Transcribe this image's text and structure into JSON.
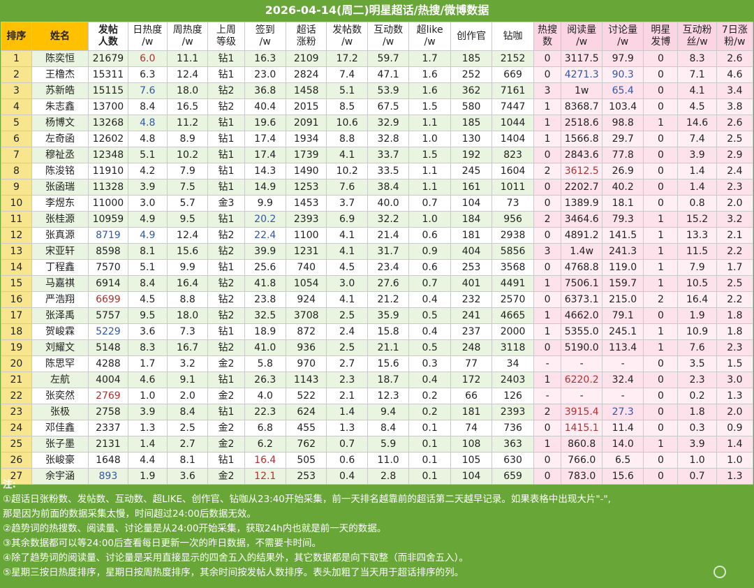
{
  "title": "2026-04-14(周二)明星超话/热搜/微博数据",
  "headers": [
    {
      "l1": "排序",
      "l2": "",
      "style": "gold"
    },
    {
      "l1": "姓名",
      "l2": "",
      "style": "gold"
    },
    {
      "l1": "发帖",
      "l2": "人数",
      "style": "hl"
    },
    {
      "l1": "日热度",
      "l2": "/w",
      "style": ""
    },
    {
      "l1": "周热度",
      "l2": "/w",
      "style": ""
    },
    {
      "l1": "上周",
      "l2": "等级",
      "style": ""
    },
    {
      "l1": "签到",
      "l2": "/w",
      "style": ""
    },
    {
      "l1": "超话",
      "l2": "涨粉",
      "style": ""
    },
    {
      "l1": "发帖数",
      "l2": "/w",
      "style": ""
    },
    {
      "l1": "互动数",
      "l2": "/w",
      "style": ""
    },
    {
      "l1": "超like",
      "l2": "/w",
      "style": ""
    },
    {
      "l1": "创作官",
      "l2": "",
      "style": ""
    },
    {
      "l1": "钻咖",
      "l2": "",
      "style": ""
    },
    {
      "l1": "热搜",
      "l2": "数",
      "style": "pink"
    },
    {
      "l1": "阅读量",
      "l2": "/w",
      "style": "pink"
    },
    {
      "l1": "讨论量",
      "l2": "/w",
      "style": "pink"
    },
    {
      "l1": "明星",
      "l2": "发博",
      "style": "pink"
    },
    {
      "l1": "互动粉",
      "l2": "丝/w",
      "style": "pink"
    },
    {
      "l1": "7日涨",
      "l2": "粉/w",
      "style": "pink"
    }
  ],
  "rows": [
    [
      "1",
      "陈奕恒",
      "21679",
      "6.0",
      "11.1",
      "钻1",
      "16.3",
      "2109",
      "17.2",
      "59.7",
      "1.7",
      "185",
      "2152",
      "0",
      "3117.5",
      "97.9",
      "0",
      "8.3",
      "2.6"
    ],
    [
      "2",
      "王橹杰",
      "15311",
      "6.3",
      "12.4",
      "钻1",
      "23.0",
      "2824",
      "7.4",
      "47.1",
      "1.6",
      "252",
      "669",
      "0",
      "4271.3",
      "90.3",
      "0",
      "7.1",
      "4.6"
    ],
    [
      "3",
      "苏新皓",
      "15115",
      "7.6",
      "18.0",
      "钻2",
      "36.8",
      "1458",
      "5.1",
      "53.9",
      "1.6",
      "362",
      "7161",
      "3",
      "1w",
      "65.4",
      "0",
      "4.1",
      "3.4"
    ],
    [
      "4",
      "朱志鑫",
      "13700",
      "8.4",
      "16.5",
      "钻2",
      "40.4",
      "2015",
      "8.5",
      "67.5",
      "1.5",
      "580",
      "7447",
      "1",
      "8368.7",
      "103.4",
      "0",
      "4.5",
      "3.8"
    ],
    [
      "5",
      "杨博文",
      "13268",
      "4.8",
      "11.2",
      "钻1",
      "19.6",
      "2091",
      "10.6",
      "32.9",
      "1.1",
      "185",
      "1044",
      "1",
      "2518.6",
      "98.8",
      "1",
      "14.6",
      "2.6"
    ],
    [
      "6",
      "左奇函",
      "12602",
      "4.8",
      "8.9",
      "钻1",
      "17.4",
      "1934",
      "8.8",
      "32.8",
      "1.0",
      "130",
      "1404",
      "1",
      "1566.8",
      "29.7",
      "0",
      "7.4",
      "2.5"
    ],
    [
      "7",
      "穆祉丞",
      "12348",
      "5.1",
      "10.2",
      "钻1",
      "17.4",
      "1739",
      "4.1",
      "33.7",
      "1.5",
      "192",
      "823",
      "0",
      "2843.6",
      "77.8",
      "0",
      "3.9",
      "2.9"
    ],
    [
      "8",
      "陈浚铭",
      "11910",
      "4.2",
      "7.9",
      "钻1",
      "14.3",
      "1490",
      "10.2",
      "33.5",
      "1.1",
      "245",
      "1604",
      "2",
      "3612.5",
      "26.9",
      "0",
      "1.4",
      "2.4"
    ],
    [
      "9",
      "张函瑞",
      "11328",
      "3.9",
      "7.5",
      "钻1",
      "14.9",
      "1253",
      "7.6",
      "38.4",
      "1.1",
      "161",
      "1011",
      "0",
      "2202.7",
      "40.2",
      "0",
      "1.4",
      "2.3"
    ],
    [
      "10",
      "李煜东",
      "11000",
      "3.0",
      "5.7",
      "金3",
      "9.9",
      "1453",
      "3.7",
      "40.0",
      "0.7",
      "104",
      "73",
      "0",
      "1389.9",
      "18.1",
      "0",
      "0.8",
      "2.0"
    ],
    [
      "11",
      "张桂源",
      "10959",
      "4.9",
      "9.5",
      "钻1",
      "20.2",
      "2393",
      "6.9",
      "32.2",
      "1.0",
      "184",
      "956",
      "2",
      "3464.6",
      "79.3",
      "1",
      "15.2",
      "3.2"
    ],
    [
      "12",
      "张真源",
      "8719",
      "4.9",
      "12.4",
      "钻2",
      "22.4",
      "1100",
      "4.1",
      "21.4",
      "0.6",
      "181",
      "2938",
      "0",
      "4891.2",
      "141.5",
      "1",
      "13.3",
      "2.1"
    ],
    [
      "13",
      "宋亚轩",
      "8598",
      "8.1",
      "15.6",
      "钻2",
      "39.9",
      "1231",
      "4.1",
      "31.7",
      "0.9",
      "404",
      "5856",
      "3",
      "1.4w",
      "241.3",
      "1",
      "11.5",
      "2.2"
    ],
    [
      "14",
      "丁程鑫",
      "7570",
      "5.1",
      "9.9",
      "钻1",
      "25.6",
      "740",
      "4.5",
      "23.4",
      "0.6",
      "253",
      "3568",
      "0",
      "4768.8",
      "119.0",
      "1",
      "7.9",
      "1.7"
    ],
    [
      "15",
      "马嘉祺",
      "6914",
      "8.4",
      "16.4",
      "钻2",
      "41.8",
      "1054",
      "3.0",
      "27.6",
      "0.7",
      "401",
      "4491",
      "1",
      "7506.1",
      "159.7",
      "1",
      "10.5",
      "2.5"
    ],
    [
      "16",
      "严浩翔",
      "6699",
      "4.5",
      "8.8",
      "钻2",
      "23.8",
      "924",
      "4.1",
      "21.2",
      "0.4",
      "232",
      "2570",
      "0",
      "6373.1",
      "215.0",
      "2",
      "16.4",
      "2.2"
    ],
    [
      "17",
      "张泽禹",
      "5757",
      "9.5",
      "18.0",
      "钻2",
      "32.5",
      "3708",
      "2.5",
      "35.9",
      "0.5",
      "241",
      "4665",
      "1",
      "4662.0",
      "79.1",
      "0",
      "1.9",
      "1.8"
    ],
    [
      "18",
      "贺峻霖",
      "5229",
      "3.6",
      "7.3",
      "钻1",
      "18.9",
      "872",
      "2.4",
      "15.8",
      "0.4",
      "237",
      "2000",
      "1",
      "5355.0",
      "245.1",
      "1",
      "10.9",
      "1.8"
    ],
    [
      "19",
      "刘耀文",
      "5148",
      "8.3",
      "16.7",
      "钻2",
      "41.0",
      "936",
      "2.5",
      "21.1",
      "0.5",
      "248",
      "3118",
      "0",
      "5190.0",
      "113.4",
      "1",
      "7.6",
      "2.3"
    ],
    [
      "20",
      "陈思罕",
      "4288",
      "1.7",
      "3.2",
      "金2",
      "5.8",
      "970",
      "2.7",
      "15.6",
      "0.3",
      "77",
      "34",
      "-",
      "-",
      "-",
      "0",
      "3.5",
      "1.5"
    ],
    [
      "21",
      "左航",
      "4004",
      "4.6",
      "9.1",
      "钻1",
      "26.3",
      "1143",
      "2.3",
      "18.7",
      "0.4",
      "172",
      "2403",
      "1",
      "6220.2",
      "32.4",
      "0",
      "2.3",
      "3.0"
    ],
    [
      "22",
      "张奕然",
      "2769",
      "1.0",
      "2.0",
      "金2",
      "4.0",
      "522",
      "2.1",
      "12.3",
      "0.2",
      "66",
      "126",
      "-",
      "-",
      "-",
      "0",
      "0.2",
      "1.3"
    ],
    [
      "23",
      "张极",
      "2758",
      "3.9",
      "8.4",
      "钻1",
      "22.3",
      "624",
      "1.4",
      "9.4",
      "0.2",
      "181",
      "2393",
      "2",
      "3915.4",
      "27.3",
      "0",
      "1.8",
      "2.0"
    ],
    [
      "24",
      "邓佳鑫",
      "2337",
      "1.3",
      "2.5",
      "金2",
      "6.8",
      "455",
      "1.3",
      "8.4",
      "0.1",
      "74",
      "736",
      "0",
      "1415.1",
      "11.4",
      "0",
      "0.3",
      "0.9"
    ],
    [
      "25",
      "张子墨",
      "2131",
      "1.4",
      "2.7",
      "金2",
      "6.2",
      "762",
      "0.7",
      "5.9",
      "0.1",
      "108",
      "363",
      "1",
      "860.8",
      "14.0",
      "1",
      "3.9",
      "1.4"
    ],
    [
      "26",
      "张峻豪",
      "1648",
      "4.4",
      "8.1",
      "钻1",
      "16.4",
      "505",
      "0.6",
      "11.0",
      "0.1",
      "105",
      "630",
      "0",
      "766.0",
      "6.5",
      "0",
      "1.0",
      "1.0"
    ],
    [
      "27",
      "余宇涵",
      "893",
      "1.9",
      "3.6",
      "金2",
      "12.1",
      "253",
      "0.4",
      "2.8",
      "0.1",
      "104",
      "659",
      "0",
      "783.0",
      "15.6",
      "0",
      "0.7",
      "1.3"
    ]
  ],
  "highlight_colors": {
    "blue": "#3156a8",
    "red": "#b03030"
  },
  "highlights": {
    "0": {
      "3": "red"
    },
    "1": {
      "14": "blue",
      "15": "blue"
    },
    "2": {
      "3": "blue",
      "15": "blue"
    },
    "4": {
      "3": "blue"
    },
    "7": {
      "14": "red"
    },
    "10": {
      "6": "blue"
    },
    "11": {
      "2": "blue",
      "3": "blue",
      "6": "blue"
    },
    "15": {
      "2": "red"
    },
    "17": {
      "2": "blue"
    },
    "20": {
      "14": "red"
    },
    "21": {
      "2": "red"
    },
    "22": {
      "14": "red",
      "15": "blue"
    },
    "23": {
      "14": "red"
    },
    "25": {
      "6": "red"
    },
    "26": {
      "2": "blue",
      "6": "red"
    }
  },
  "notes": {
    "heading": "注:",
    "lines": [
      "①超话日张粉数、发帖数、互动数、超LIKE、创作官、钻咖从23:40开始采集，前一天排名越靠前的超话第二天越早记录。如果表格中出现大片\"-\",",
      "那是因为前面的数据采集太慢，时间超过24:00后数据无效。",
      "②趋势词的热搜数、阅读量、讨论量是从24:00开始采集，获取24h内也就是前一天的数据。",
      "③其余数据都可以等24:00后查看每日更新一次的昨日数据，不需要卡时间。",
      "④除了趋势词的阅读量、讨论量是采用直接显示的四舍五入的结果外，其它数据都是向下取整（而非四舍五入）。",
      "⑤星期三按日热度排序，星期日按周热度排序，其余时间按发帖人数排序。表头加粗了当天用于超话排序的列。"
    ]
  },
  "watermark": {
    "icon": "weibo-logo-icon"
  }
}
